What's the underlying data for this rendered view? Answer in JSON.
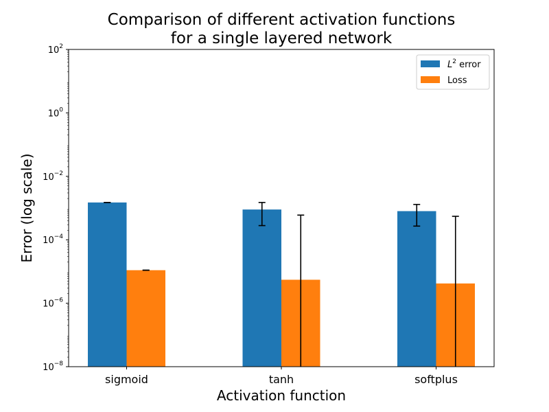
{
  "chart_data": {
    "type": "bar",
    "title_lines": [
      "Comparison of different activation functions",
      "for a single layered network"
    ],
    "xlabel": "Activation function",
    "ylabel": "Error (log scale)",
    "yscale": "log",
    "ylim": [
      1e-08,
      100
    ],
    "y_ticks": [
      {
        "base": "10",
        "exp": "−8",
        "value": 1e-08
      },
      {
        "base": "10",
        "exp": "−6",
        "value": 1e-06
      },
      {
        "base": "10",
        "exp": "−4",
        "value": 0.0001
      },
      {
        "base": "10",
        "exp": "−2",
        "value": 0.01
      },
      {
        "base": "10",
        "exp": "0",
        "value": 1
      },
      {
        "base": "10",
        "exp": "2",
        "value": 100
      }
    ],
    "categories": [
      "sigmoid",
      "tanh",
      "softplus"
    ],
    "series": [
      {
        "name": "L² error",
        "legend": {
          "symbol": "L",
          "sup": "2",
          "suffix": " error"
        },
        "color": "#1f77b4",
        "values": [
          0.0015,
          0.0009,
          0.0008
        ],
        "errors": [
          {
            "low": 0.0015,
            "high": 0.0015
          },
          {
            "low": 0.00028,
            "high": 0.0015
          },
          {
            "low": 0.00027,
            "high": 0.0013
          }
        ]
      },
      {
        "name": "Loss",
        "legend": {
          "symbol": "",
          "sup": "",
          "suffix": "Loss"
        },
        "color": "#ff7f0e",
        "values": [
          1.1e-05,
          5.5e-06,
          4.2e-06
        ],
        "errors": [
          {
            "low": 1.1e-05,
            "high": 1.1e-05
          },
          {
            "low": 1e-08,
            "high": 0.0006
          },
          {
            "low": 1e-08,
            "high": 0.00055
          }
        ]
      }
    ],
    "legend_position": "top-right",
    "grid": false
  }
}
